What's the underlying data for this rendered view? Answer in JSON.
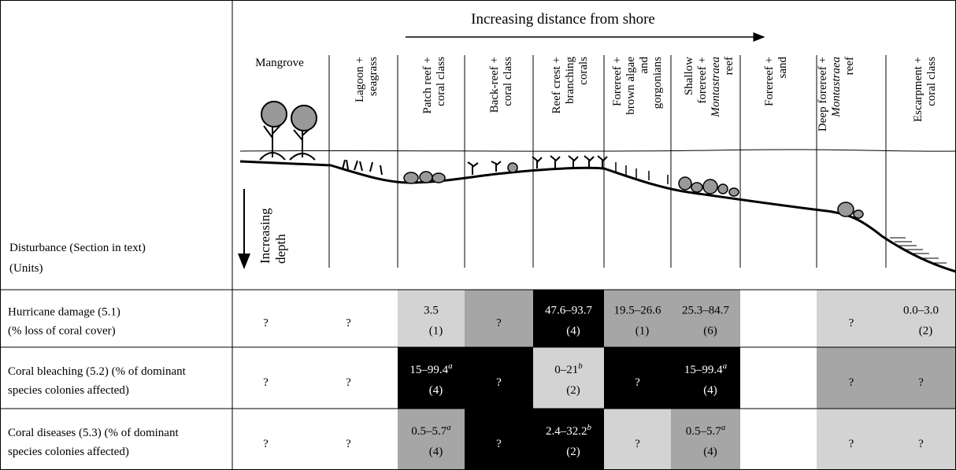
{
  "header": {
    "direction": "Increasing distance from shore",
    "depth": [
      "Increasing",
      "depth"
    ],
    "disturbance": "Disturbance (Section in text)",
    "units": "(Units)",
    "zones": [
      [
        "Mangrove"
      ],
      [
        "Lagoon +",
        "seagrass"
      ],
      [
        "Patch reef +",
        "coral class"
      ],
      [
        "Back-reef +",
        "coral class"
      ],
      [
        "Reef crest +",
        "branching",
        "corals"
      ],
      [
        "Forereef +",
        "brown algae",
        "and",
        "gorgonians"
      ],
      [
        "Shallow",
        "forereef +",
        "Montastraea",
        "reef"
      ],
      [
        "Forereef +",
        "sand"
      ],
      [
        "Deep forereef +",
        "Montastraea",
        "reef"
      ],
      [
        "Escarpment +",
        "coral class"
      ]
    ]
  },
  "table": {
    "rows": [
      {
        "label": [
          "Hurricane damage (5.1)",
          "(% loss of coral cover)"
        ],
        "cells": [
          {
            "fill": "#ffffff",
            "value": "?"
          },
          {
            "fill": "#ffffff",
            "value": "?"
          },
          {
            "fill": "#d3d3d3",
            "value": "3.5",
            "n": "(1)"
          },
          {
            "fill": "#a6a6a6",
            "value": "?"
          },
          {
            "fill": "#000000",
            "value": "47.6–93.7",
            "n": "(4)"
          },
          {
            "fill": "#a6a6a6",
            "value": "19.5–26.6",
            "n": "(1)"
          },
          {
            "fill": "#a6a6a6",
            "value": "25.3–84.7",
            "n": "(6)"
          },
          {
            "fill": "#ffffff"
          },
          {
            "fill": "#d3d3d3",
            "value": "?"
          },
          {
            "fill": "#d3d3d3",
            "value": "0.0–3.0",
            "n": "(2)"
          }
        ]
      },
      {
        "label": [
          "Coral bleaching (5.2) (% of dominant",
          "species colonies affected)"
        ],
        "cells": [
          {
            "fill": "#ffffff",
            "value": "?"
          },
          {
            "fill": "#ffffff",
            "value": "?"
          },
          {
            "fill": "#000000",
            "value": "15–99.4",
            "note": "a",
            "n": "(4)"
          },
          {
            "fill": "#000000",
            "value": "?"
          },
          {
            "fill": "#d3d3d3",
            "value": "0–21",
            "note": "b",
            "n": "(2)"
          },
          {
            "fill": "#000000",
            "value": "?"
          },
          {
            "fill": "#000000",
            "value": "15–99.4",
            "note": "a",
            "n": "(4)"
          },
          {
            "fill": "#ffffff"
          },
          {
            "fill": "#a6a6a6",
            "value": "?"
          },
          {
            "fill": "#a6a6a6",
            "value": "?"
          }
        ]
      },
      {
        "label": [
          "Coral diseases (5.3) (% of dominant",
          "species colonies affected)"
        ],
        "cells": [
          {
            "fill": "#ffffff",
            "value": "?"
          },
          {
            "fill": "#ffffff",
            "value": "?"
          },
          {
            "fill": "#a6a6a6",
            "value": "0.5–5.7",
            "note": "a",
            "n": "(4)"
          },
          {
            "fill": "#000000",
            "value": "?"
          },
          {
            "fill": "#000000",
            "value": "2.4–32.2",
            "note": "b",
            "n": "(2)"
          },
          {
            "fill": "#d3d3d3",
            "value": "?"
          },
          {
            "fill": "#a6a6a6",
            "value": "0.5–5.7",
            "note": "a",
            "n": "(4)"
          },
          {
            "fill": "#ffffff"
          },
          {
            "fill": "#d3d3d3",
            "value": "?"
          },
          {
            "fill": "#d3d3d3",
            "value": "?"
          }
        ]
      }
    ]
  }
}
